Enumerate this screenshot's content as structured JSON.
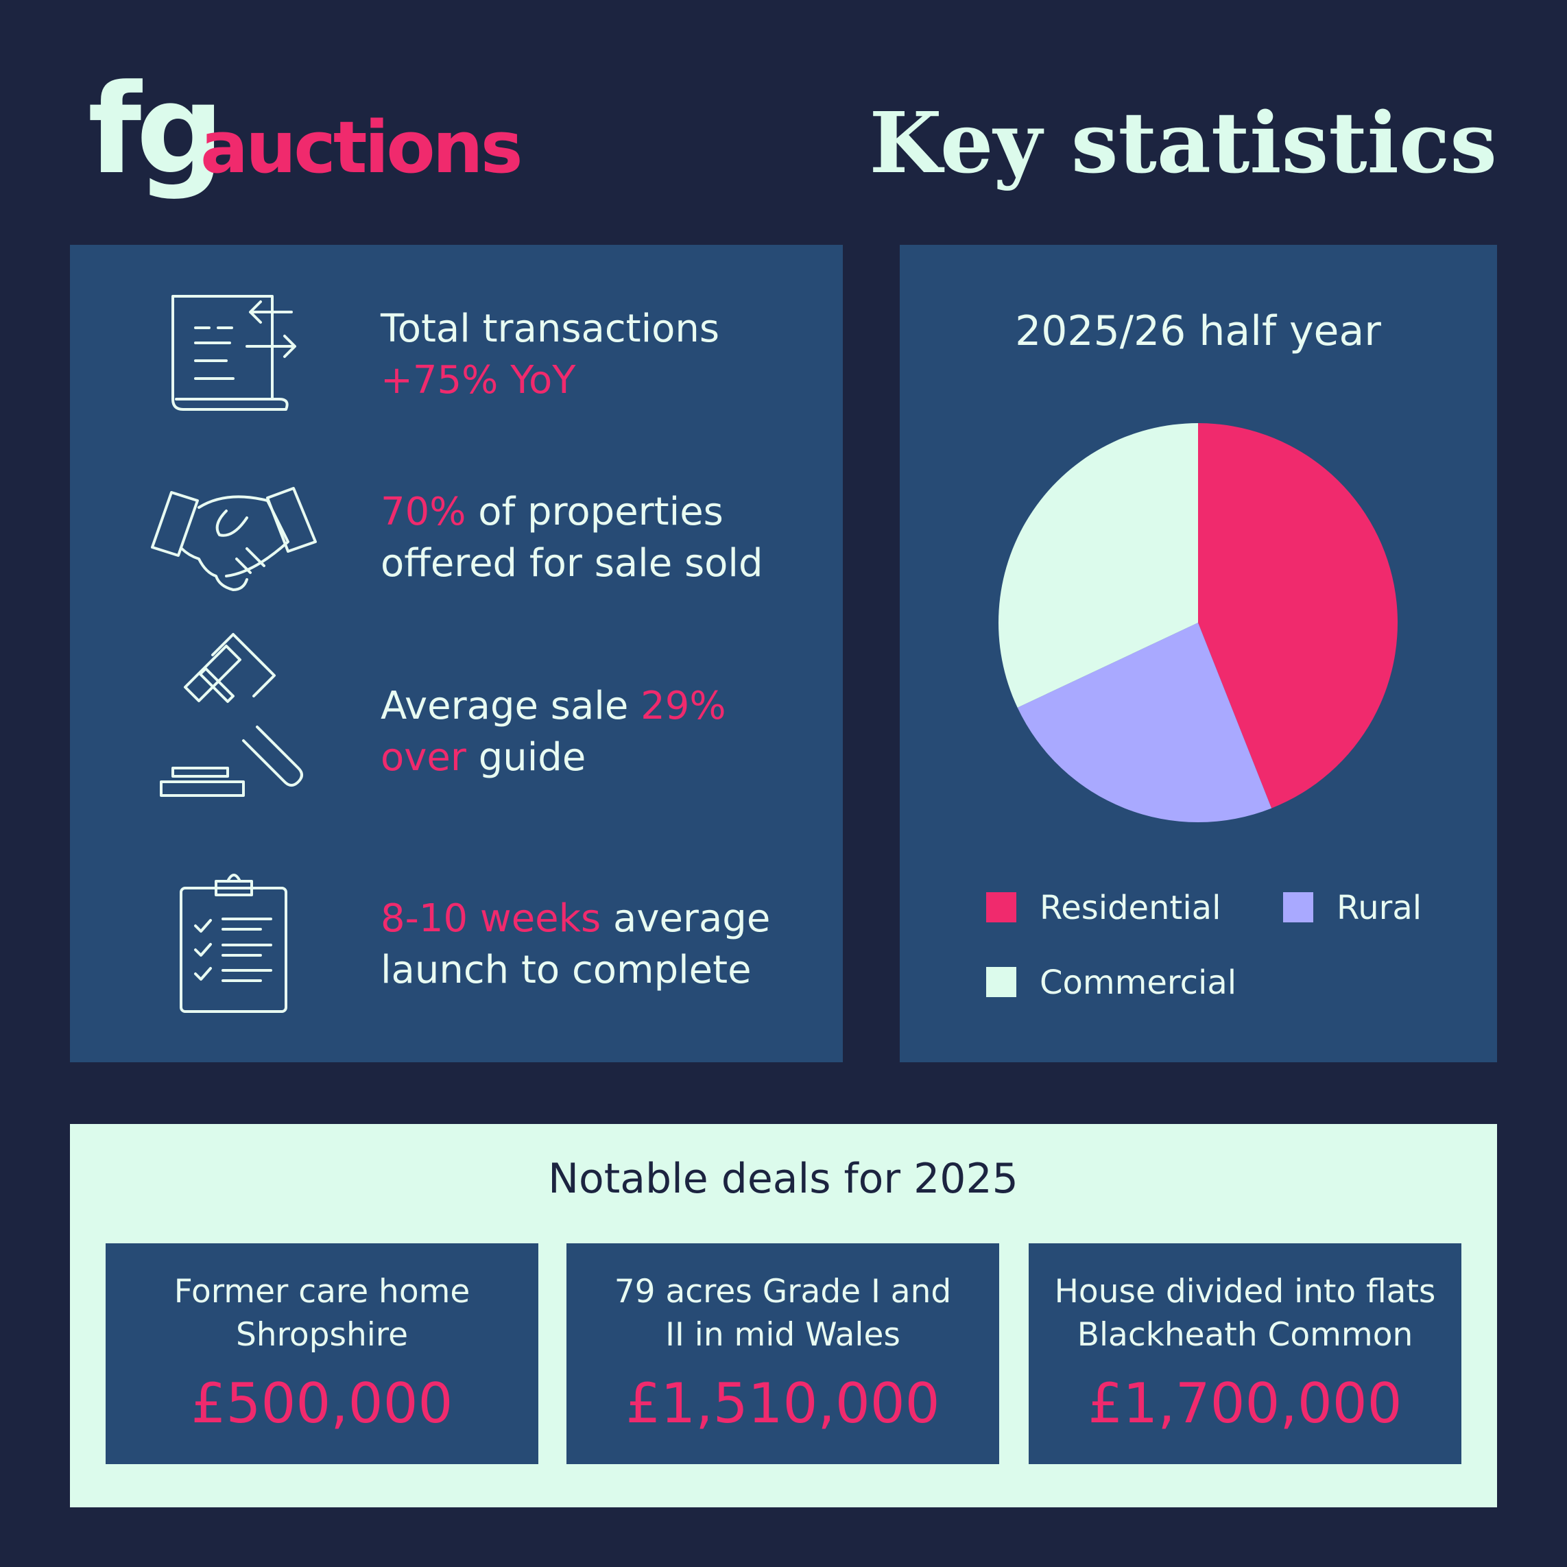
{
  "header": {
    "logo_fg": "fg",
    "logo_auctions": "auctions",
    "title": "Key statistics"
  },
  "stats": [
    {
      "lines": [
        [
          {
            "text": "Total transactions",
            "color": "#e8fbf2"
          }
        ],
        [
          {
            "text": "+75% YoY",
            "color": "#f02a6d"
          }
        ]
      ]
    },
    {
      "lines": [
        [
          {
            "text": "70%",
            "color": "#f02a6d"
          },
          {
            "text": " of properties",
            "color": "#e8fbf2"
          }
        ],
        [
          {
            "text": "offered for sale sold",
            "color": "#e8fbf2"
          }
        ]
      ]
    },
    {
      "lines": [
        [
          {
            "text": "Average sale ",
            "color": "#e8fbf2"
          },
          {
            "text": "29%",
            "color": "#f02a6d"
          }
        ],
        [
          {
            "text": "over",
            "color": "#f02a6d"
          },
          {
            "text": " guide",
            "color": "#e8fbf2"
          }
        ]
      ]
    },
    {
      "lines": [
        [
          {
            "text": "8-10 weeks",
            "color": "#f02a6d"
          },
          {
            "text": " average",
            "color": "#e8fbf2"
          }
        ],
        [
          {
            "text": "launch to complete",
            "color": "#e8fbf2"
          }
        ]
      ]
    }
  ],
  "chart_data": {
    "type": "pie",
    "title": "2025/26 half year",
    "categories": [
      "Residential",
      "Rural",
      "Commercial"
    ],
    "values": [
      44,
      24,
      32
    ],
    "colors": [
      "#f02a6d",
      "#a9a9ff",
      "#dcfbec"
    ]
  },
  "deals": {
    "title": "Notable deals for 2025",
    "items": [
      {
        "lines": [
          "Former care home",
          "Shropshire"
        ],
        "price": "£500,000"
      },
      {
        "lines": [
          "79 acres Grade I and",
          "II in mid Wales"
        ],
        "price": "£1,510,000"
      },
      {
        "lines": [
          "House divided into flats",
          "Blackheath Common"
        ],
        "price": "£1,700,000"
      }
    ]
  }
}
